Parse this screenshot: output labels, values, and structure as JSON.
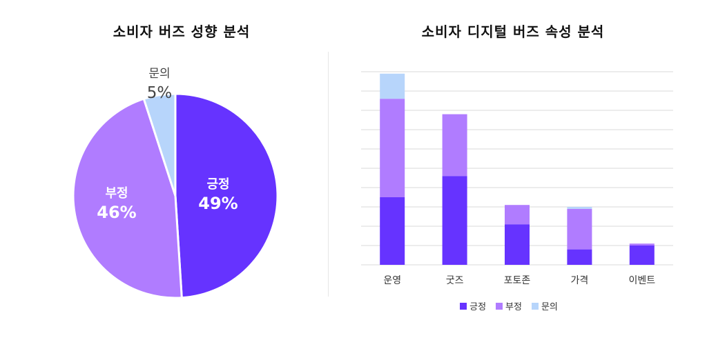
{
  "colors": {
    "positive": "#6633ff",
    "negative": "#b07cff",
    "inquiry": "#b7d5fb"
  },
  "chart_data": [
    {
      "type": "pie",
      "title": "소비자 버즈 성향 분석",
      "slices": [
        {
          "label": "긍정",
          "value": 49,
          "value_label": "49%",
          "color": "#6633ff"
        },
        {
          "label": "부정",
          "value": 46,
          "value_label": "46%",
          "color": "#b07cff"
        },
        {
          "label": "문의",
          "value": 5,
          "value_label": "5%",
          "color": "#b7d5fb"
        }
      ]
    },
    {
      "type": "bar",
      "stacked": true,
      "title": "소비자 디지털 버즈 속성 분석",
      "categories": [
        "운영",
        "굿즈",
        "포토존",
        "가격",
        "이벤트"
      ],
      "series": [
        {
          "name": "긍정",
          "color": "#6633ff",
          "values": [
            35,
            46,
            21,
            8,
            10
          ]
        },
        {
          "name": "부정",
          "color": "#b07cff",
          "values": [
            51,
            32,
            10,
            21,
            1
          ]
        },
        {
          "name": "문의",
          "color": "#b7d5fb",
          "values": [
            13,
            0,
            0,
            1,
            0
          ]
        }
      ],
      "ylim": [
        0,
        100
      ],
      "grid": true,
      "legend": "bottom"
    }
  ]
}
